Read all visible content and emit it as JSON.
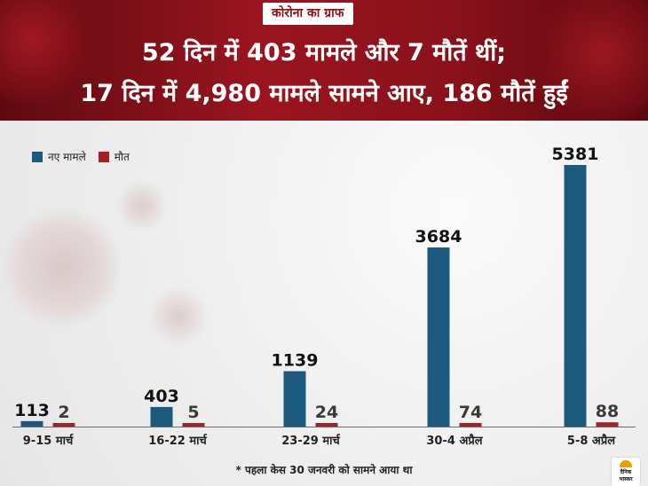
{
  "header": {
    "tag": "कोरोना का ग्राफ",
    "headline_line1": "52 दिन में 403 मामले और 7 मौतें थीं;",
    "headline_line2": "17 दिन में 4,980 मामले सामने आए, 186 मौतें हुईं"
  },
  "legend": {
    "new_cases": "नए मामले",
    "deaths": "मौत"
  },
  "footnote": "* पहला केस 30 जनवरी को सामने आया था",
  "logo": {
    "line1": "दैनिक",
    "line2": "भास्कर"
  },
  "colors": {
    "new_cases": "#1b5a7e",
    "deaths": "#a51f24",
    "header": "#8a111b"
  },
  "chart_data": {
    "type": "bar",
    "categories": [
      "9-15 मार्च",
      "16-22 मार्च",
      "23-29 मार्च",
      "30-4 अप्रैल",
      "5-8 अप्रैल"
    ],
    "series": [
      {
        "name": "नए मामले",
        "values": [
          113,
          403,
          1139,
          3684,
          5381
        ]
      },
      {
        "name": "मौत",
        "values": [
          2,
          5,
          24,
          74,
          88
        ]
      }
    ],
    "data_labels": [
      [
        "113",
        "403",
        "1139",
        "3684",
        "5381"
      ],
      [
        "2",
        "5",
        "24",
        "74",
        "88"
      ]
    ],
    "legend_position": "top-left",
    "grid": false
  }
}
